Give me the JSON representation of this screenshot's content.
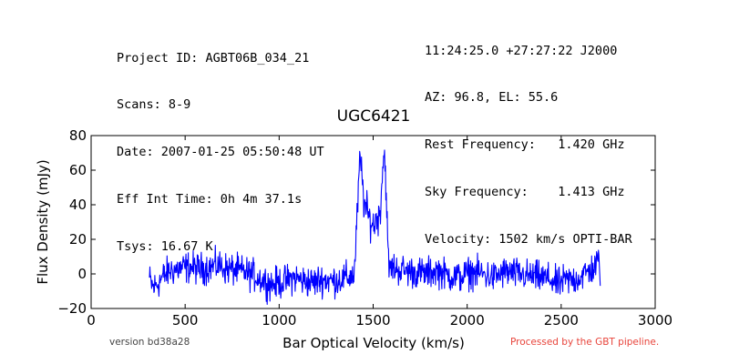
{
  "header": {
    "left": [
      "Project ID: AGBT06B_034_21",
      "Scans: 8-9",
      "Date: 2007-01-25 05:50:48 UT",
      "Eff Int Time: 0h 4m 37.1s",
      "Tsys: 16.67 K"
    ],
    "right": [
      "11:24:25.0 +27:27:22 J2000",
      "AZ: 96.8, EL: 55.6",
      "Rest Frequency:   1.420 GHz",
      "Sky Frequency:    1.413 GHz",
      "Velocity: 1502 km/s OPTI-BAR"
    ]
  },
  "footer": {
    "version": "version bd38a28",
    "pipeline": "Processed by the GBT pipeline."
  },
  "chart_data": {
    "type": "line",
    "title": "UGC6421",
    "xlabel": "Bar Optical Velocity (km/s)",
    "ylabel": "Flux Density (mJy)",
    "xlim": [
      0,
      3000
    ],
    "ylim": [
      -20,
      80
    ],
    "xticks": [
      0,
      500,
      1000,
      1500,
      2000,
      2500,
      3000
    ],
    "yticks": [
      -20,
      0,
      20,
      40,
      60,
      80
    ],
    "grid": false,
    "line_color": "#0000ff",
    "series": [
      {
        "x": [
          310,
          330,
          350,
          380,
          420,
          470,
          520,
          580,
          640,
          680,
          720,
          770,
          820,
          870,
          920,
          960,
          1000,
          1040,
          1080,
          1130,
          1180,
          1230,
          1280,
          1330,
          1370,
          1400,
          1420,
          1430,
          1440,
          1450,
          1460,
          1470,
          1480,
          1490,
          1500,
          1510,
          1520,
          1530,
          1540,
          1550,
          1560,
          1570,
          1580,
          1590,
          1600,
          1620,
          1660,
          1720,
          1780,
          1840,
          1900,
          1960,
          2020,
          2080,
          2140,
          2200,
          2260,
          2320,
          2380,
          2440,
          2480,
          2520,
          2580,
          2640,
          2680,
          2700,
          2710
        ],
        "y": [
          -3,
          -8,
          -6,
          -2,
          2,
          3,
          4,
          3,
          4,
          5,
          3,
          2,
          1,
          -1,
          -4,
          -6,
          -5,
          -4,
          -2,
          -4,
          -5,
          -3,
          -4,
          -3,
          -2,
          0,
          45,
          66,
          58,
          42,
          38,
          35,
          32,
          30,
          28,
          30,
          34,
          32,
          40,
          62,
          70,
          48,
          8,
          2,
          4,
          3,
          2,
          1,
          0,
          2,
          -1,
          -2,
          1,
          0,
          -2,
          1,
          0,
          -1,
          -2,
          -3,
          -6,
          -4,
          -3,
          1,
          4,
          8,
          -1
        ]
      }
    ]
  }
}
